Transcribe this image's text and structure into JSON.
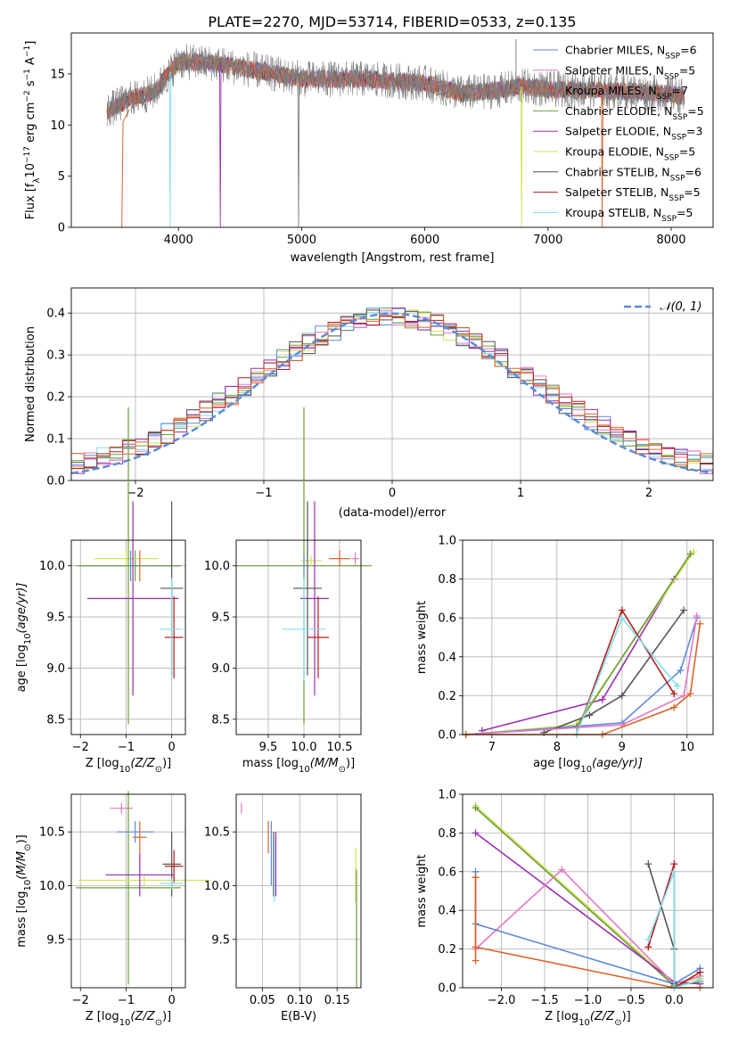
{
  "title": "PLATE=2270, MJD=53714, FIBERID=0533, z=0.135",
  "legend_entries": [
    {
      "prefix": "Chabrier MILES, N",
      "sub": "SSP",
      "suffix": "=6",
      "color": "#5b8bd9"
    },
    {
      "prefix": "Salpeter MILES, N",
      "sub": "SSP",
      "suffix": "=5",
      "color": "#e377c2"
    },
    {
      "prefix": "Kroupa MILES, N",
      "sub": "SSP",
      "suffix": "=7",
      "color": "#d9652a"
    },
    {
      "prefix": "Chabrier ELODIE, N",
      "sub": "SSP",
      "suffix": "=5",
      "color": "#6a9e3a"
    },
    {
      "prefix": "Salpeter ELODIE, N",
      "sub": "SSP",
      "suffix": "=3",
      "color": "#9b2fb0"
    },
    {
      "prefix": "Kroupa ELODIE, N",
      "sub": "SSP",
      "suffix": "=5",
      "color": "#d4e157"
    },
    {
      "prefix": "Chabrier STELIB, N",
      "sub": "SSP",
      "suffix": "=6",
      "color": "#555555"
    },
    {
      "prefix": "Salpeter STELIB, N",
      "sub": "SSP",
      "suffix": "=5",
      "color": "#b71c1c"
    },
    {
      "prefix": "Kroupa STELIB, N",
      "sub": "SSP",
      "suffix": "=5",
      "color": "#80deea"
    }
  ],
  "chart_data": [
    {
      "id": "spectrum",
      "type": "line",
      "xlabel": "wavelength [Angstrom, rest frame]",
      "ylabel_prefix": "Flux [f",
      "ylabel_lambda": "λ",
      "ylabel_mid": "10",
      "ylabel_exp1": "−17",
      "ylabel_units": " erg cm",
      "ylabel_exp2": "−2",
      "ylabel_s": " s",
      "ylabel_exp3": "−1",
      "ylabel_A": " A",
      "ylabel_exp4": "−1",
      "ylabel_end": "]",
      "xlim": [
        3130,
        8340
      ],
      "ylim": [
        0,
        19
      ],
      "xticks": [
        4000,
        5000,
        6000,
        7000,
        8000
      ],
      "yticks": [
        0,
        5,
        10,
        15
      ],
      "data_color": "#808080",
      "continuum": [
        [
          3420,
          11.4
        ],
        [
          3600,
          12.5
        ],
        [
          3800,
          13.2
        ],
        [
          4000,
          16.2
        ],
        [
          4300,
          16.0
        ],
        [
          4600,
          15.4
        ],
        [
          5000,
          14.5
        ],
        [
          5500,
          14.5
        ],
        [
          6000,
          14.1
        ],
        [
          6300,
          13.1
        ],
        [
          6600,
          13.4
        ],
        [
          6800,
          13.8
        ],
        [
          7000,
          13.5
        ],
        [
          7400,
          13.4
        ],
        [
          7800,
          13.2
        ],
        [
          8000,
          13.0
        ],
        [
          8110,
          12.8
        ]
      ],
      "dips": [
        {
          "x": 3933,
          "y": 0,
          "color": "#80deea"
        },
        {
          "x": 4340,
          "y": 0,
          "color": "#9b2fb0"
        },
        {
          "x": 4975,
          "y": 0,
          "color": "#808080"
        },
        {
          "x": 6785,
          "y": 0,
          "color": "#d4e157"
        },
        {
          "x": 7440,
          "y": 0,
          "color": "#d9652a"
        }
      ],
      "spikes": [
        {
          "x": 6740,
          "y": 18.4
        }
      ],
      "edge_model": {
        "x": 3540,
        "color": "#d9652a"
      }
    },
    {
      "id": "residuals",
      "type": "step",
      "xlabel": "(data-model)/error",
      "ylabel": "Normed distribution",
      "xlim": [
        -2.5,
        2.5
      ],
      "ylim": [
        0,
        0.46
      ],
      "xticks": [
        -2,
        -1,
        0,
        1,
        2
      ],
      "yticks": [
        0.0,
        0.1,
        0.2,
        0.3,
        0.4
      ],
      "bin_width": 0.1,
      "normal_label": "𝒩(0, 1)",
      "normal_color": "#5b8bd9"
    },
    {
      "id": "age-vs-Z",
      "type": "errorbar",
      "xlabel_text": "Z [log",
      "xlabel_sub": "10",
      "xlabel_var": "(Z/Z",
      "xlabel_sun": "⊙",
      "xlabel_end": ")]",
      "ylabel_text": "age  [log",
      "ylabel_sub": "10",
      "ylabel_var": "(age/yr)]",
      "xlim": [
        -2.2,
        0.3
      ],
      "ylim": [
        8.35,
        10.25
      ],
      "xticks": [
        -2,
        -1,
        0
      ],
      "yticks": [
        8.5,
        9.0,
        9.5,
        10.0
      ],
      "points": [
        {
          "x": -0.8,
          "xerr": 0.0,
          "y": 10.0,
          "yerr": 0.15,
          "c": 3
        },
        {
          "x": -1.0,
          "xerr": 0.7,
          "y": 10.07,
          "yerr": 0.1,
          "c": 5
        },
        {
          "x": -0.9,
          "xerr": 1.1,
          "y": 10.0,
          "yerr": 0.15,
          "c": 0
        },
        {
          "x": -0.7,
          "xerr": 0.0,
          "y": 10.0,
          "yerr": 0.15,
          "c": 2
        },
        {
          "x": -0.95,
          "xerr": 1.15,
          "y": 10.0,
          "yerr": 1.55,
          "c": 3
        },
        {
          "x": -0.85,
          "xerr": 1.0,
          "y": 9.68,
          "yerr": 0.95,
          "c": 4
        },
        {
          "x": 0.0,
          "xerr": 0.25,
          "y": 9.78,
          "yerr": 0.85,
          "c": 6
        },
        {
          "x": 0.05,
          "xerr": 0.2,
          "y": 9.3,
          "yerr": 0.4,
          "c": 7
        },
        {
          "x": 0.0,
          "xerr": 0.25,
          "y": 9.38,
          "yerr": 0.5,
          "c": 8
        }
      ]
    },
    {
      "id": "age-vs-mass",
      "type": "errorbar",
      "xlabel_text": "mass [log",
      "xlabel_sub": "10",
      "xlabel_var": "(M/M",
      "xlabel_sun": "⊙",
      "xlabel_end": ")]",
      "xlim": [
        9.05,
        10.8
      ],
      "ylim": [
        8.35,
        10.25
      ],
      "xticks": [
        9.5,
        10.0,
        10.5
      ],
      "yticks": [
        8.5,
        9.0,
        9.5,
        10.0
      ],
      "points": [
        {
          "x": 10.5,
          "xerr": 0.15,
          "y": 10.07,
          "yerr": 0.08,
          "c": 2
        },
        {
          "x": 10.72,
          "xerr": 0.05,
          "y": 10.07,
          "yerr": 0.06,
          "c": 1
        },
        {
          "x": 10.0,
          "xerr": 0.95,
          "y": 10.0,
          "yerr": 1.55,
          "c": 3
        },
        {
          "x": 10.1,
          "xerr": 0.15,
          "y": 10.05,
          "yerr": 0.05,
          "c": 5
        },
        {
          "x": 10.15,
          "xerr": 0.2,
          "y": 9.68,
          "yerr": 0.95,
          "c": 4
        },
        {
          "x": 10.05,
          "xerr": 0.2,
          "y": 9.78,
          "yerr": 0.85,
          "c": 6
        },
        {
          "x": 10.2,
          "xerr": 0.15,
          "y": 9.3,
          "yerr": 0.4,
          "c": 7
        },
        {
          "x": 10.0,
          "xerr": 0.3,
          "y": 9.38,
          "yerr": 0.5,
          "c": 8
        },
        {
          "x": 10.0,
          "xerr": 0.0,
          "y": 10.0,
          "yerr": 0.1,
          "c": 0
        }
      ]
    },
    {
      "id": "weight-vs-age",
      "type": "line-markers",
      "xlabel_text": "age  [log",
      "xlabel_sub": "10",
      "xlabel_var": "(age/yr)]",
      "ylabel": "mass weight",
      "xlim": [
        6.55,
        10.4
      ],
      "ylim": [
        0,
        1
      ],
      "xticks": [
        7,
        8,
        9,
        10
      ],
      "yticks": [
        0.0,
        0.2,
        0.4,
        0.6,
        0.8,
        1.0
      ],
      "series": [
        {
          "c": 4,
          "pts": [
            [
              6.85,
              0.02
            ],
            [
              8.7,
              0.18
            ],
            [
              9.8,
              0.8
            ]
          ]
        },
        {
          "c": 5,
          "pts": [
            [
              6.6,
              0.0
            ],
            [
              8.3,
              0.05
            ],
            [
              10.1,
              0.94
            ]
          ]
        },
        {
          "c": 3,
          "pts": [
            [
              6.6,
              0.0
            ],
            [
              8.3,
              0.04
            ],
            [
              10.05,
              0.93
            ]
          ]
        },
        {
          "c": 0,
          "pts": [
            [
              6.6,
              0.0
            ],
            [
              9.0,
              0.06
            ],
            [
              9.9,
              0.33
            ],
            [
              10.15,
              0.6
            ]
          ]
        },
        {
          "c": 6,
          "pts": [
            [
              7.8,
              0.01
            ],
            [
              8.5,
              0.1
            ],
            [
              9.0,
              0.2
            ],
            [
              9.95,
              0.64
            ]
          ]
        },
        {
          "c": 7,
          "pts": [
            [
              8.3,
              0.0
            ],
            [
              9.0,
              0.64
            ],
            [
              9.8,
              0.21
            ]
          ]
        },
        {
          "c": 8,
          "pts": [
            [
              8.3,
              0.0
            ],
            [
              9.0,
              0.6
            ],
            [
              9.85,
              0.25
            ]
          ]
        },
        {
          "c": 1,
          "pts": [
            [
              6.6,
              0.0
            ],
            [
              9.0,
              0.05
            ],
            [
              9.95,
              0.2
            ],
            [
              10.15,
              0.61
            ]
          ]
        },
        {
          "c": 2,
          "pts": [
            [
              6.6,
              0.0
            ],
            [
              8.7,
              0.0
            ],
            [
              9.8,
              0.14
            ],
            [
              10.05,
              0.21
            ],
            [
              10.2,
              0.57
            ]
          ]
        }
      ]
    },
    {
      "id": "mass-vs-Z",
      "type": "errorbar",
      "xlabel_text": "Z [log",
      "xlabel_sub": "10",
      "xlabel_var": "(Z/Z",
      "xlabel_sun": "⊙",
      "xlabel_end": ")]",
      "ylabel_text": "mass [log",
      "ylabel_sub": "10",
      "ylabel_var": "(M/M",
      "ylabel_sun": "⊙",
      "ylabel_end": ")]",
      "xlim": [
        -2.2,
        0.3
      ],
      "ylim": [
        9.05,
        10.85
      ],
      "xticks": [
        -2,
        -1,
        0
      ],
      "yticks": [
        9.5,
        10.0,
        10.5
      ],
      "points": [
        {
          "x": -1.1,
          "xerr": 0.25,
          "y": 10.72,
          "yerr": 0.05,
          "c": 1
        },
        {
          "x": -0.8,
          "xerr": 0.4,
          "y": 10.5,
          "yerr": 0.1,
          "c": 0
        },
        {
          "x": -0.7,
          "xerr": 0.15,
          "y": 10.45,
          "yerr": 0.15,
          "c": 2
        },
        {
          "x": -0.95,
          "xerr": 1.15,
          "y": 9.98,
          "yerr": 0.9,
          "c": 3
        },
        {
          "x": -0.6,
          "xerr": 1.45,
          "y": 10.05,
          "yerr": 0.05,
          "c": 5
        },
        {
          "x": -0.7,
          "xerr": 0.75,
          "y": 10.1,
          "yerr": 0.2,
          "c": 4
        },
        {
          "x": 0.0,
          "xerr": 0.2,
          "y": 10.2,
          "yerr": 0.3,
          "c": 6
        },
        {
          "x": 0.05,
          "xerr": 0.2,
          "y": 10.18,
          "yerr": 0.15,
          "c": 7
        },
        {
          "x": 0.0,
          "xerr": 0.25,
          "y": 10.02,
          "yerr": 0.05,
          "c": 8
        }
      ]
    },
    {
      "id": "mass-vs-EBV",
      "type": "errorbar",
      "xlabel": "E(B-V)",
      "xlim": [
        0.015,
        0.182
      ],
      "ylim": [
        9.05,
        10.85
      ],
      "xticks": [
        0.05,
        0.1,
        0.15
      ],
      "yticks": [
        9.5,
        10.0,
        10.5
      ],
      "points": [
        {
          "x": 0.022,
          "xerr": 0.0,
          "y": 10.72,
          "yerr": 0.05,
          "c": 1
        },
        {
          "x": 0.058,
          "xerr": 0.0,
          "y": 10.45,
          "yerr": 0.15,
          "c": 2
        },
        {
          "x": 0.062,
          "xerr": 0.0,
          "y": 10.3,
          "yerr": 0.3,
          "c": 0
        },
        {
          "x": 0.065,
          "xerr": 0.0,
          "y": 10.2,
          "yerr": 0.3,
          "c": 6
        },
        {
          "x": 0.066,
          "xerr": 0.0,
          "y": 10.15,
          "yerr": 0.3,
          "c": 8
        },
        {
          "x": 0.068,
          "xerr": 0.0,
          "y": 10.2,
          "yerr": 0.3,
          "c": 4
        },
        {
          "x": 0.175,
          "xerr": 0.0,
          "y": 10.1,
          "yerr": 0.25,
          "c": 5
        },
        {
          "x": 0.176,
          "xerr": 0.0,
          "y": 9.6,
          "yerr": 0.55,
          "c": 3
        }
      ]
    },
    {
      "id": "weight-vs-Z",
      "type": "line-markers",
      "xlabel_text": "Z [log",
      "xlabel_sub": "10",
      "xlabel_var": "(Z/Z",
      "xlabel_sun": "⊙",
      "xlabel_end": ")]",
      "ylabel": "mass weight",
      "xlim": [
        -2.45,
        0.45
      ],
      "ylim": [
        0,
        1
      ],
      "xticks": [
        -2.0,
        -1.5,
        -1.0,
        -0.5,
        0.0
      ],
      "yticks": [
        0.0,
        0.2,
        0.4,
        0.6,
        0.8,
        1.0
      ],
      "series": [
        {
          "c": 5,
          "pts": [
            [
              -2.3,
              0.94
            ],
            [
              0.0,
              0.02
            ],
            [
              0.3,
              0.05
            ]
          ]
        },
        {
          "c": 3,
          "pts": [
            [
              -2.3,
              0.93
            ],
            [
              0.0,
              0.01
            ],
            [
              0.3,
              0.03
            ]
          ]
        },
        {
          "c": 4,
          "pts": [
            [
              -2.3,
              0.8
            ],
            [
              0.0,
              0.03
            ],
            [
              0.3,
              0.02
            ]
          ]
        },
        {
          "c": 1,
          "pts": [
            [
              -2.3,
              0.2
            ],
            [
              -1.3,
              0.61
            ],
            [
              0.0,
              0.02
            ],
            [
              0.3,
              0.06
            ]
          ]
        },
        {
          "c": 0,
          "pts": [
            [
              -2.3,
              0.6
            ],
            [
              -2.3,
              0.33
            ],
            [
              0.0,
              0.02
            ],
            [
              0.3,
              0.1
            ]
          ]
        },
        {
          "c": 2,
          "pts": [
            [
              -2.3,
              0.57
            ],
            [
              -2.3,
              0.21
            ],
            [
              0.0,
              0.0
            ],
            [
              0.3,
              0.0
            ]
          ]
        },
        {
          "c": 6,
          "pts": [
            [
              -0.3,
              0.64
            ],
            [
              0.0,
              0.2
            ],
            [
              0.0,
              0.02
            ]
          ]
        },
        {
          "c": 7,
          "pts": [
            [
              -0.3,
              0.21
            ],
            [
              0.0,
              0.64
            ],
            [
              0.0,
              0.0
            ],
            [
              0.3,
              0.08
            ]
          ]
        },
        {
          "c": 8,
          "pts": [
            [
              -0.3,
              0.25
            ],
            [
              0.0,
              0.6
            ],
            [
              0.0,
              0.0
            ],
            [
              0.3,
              0.04
            ]
          ]
        },
        {
          "c": 2,
          "pts": [
            [
              -2.3,
              0.14
            ],
            [
              -2.3,
              0.57
            ]
          ]
        }
      ]
    }
  ]
}
